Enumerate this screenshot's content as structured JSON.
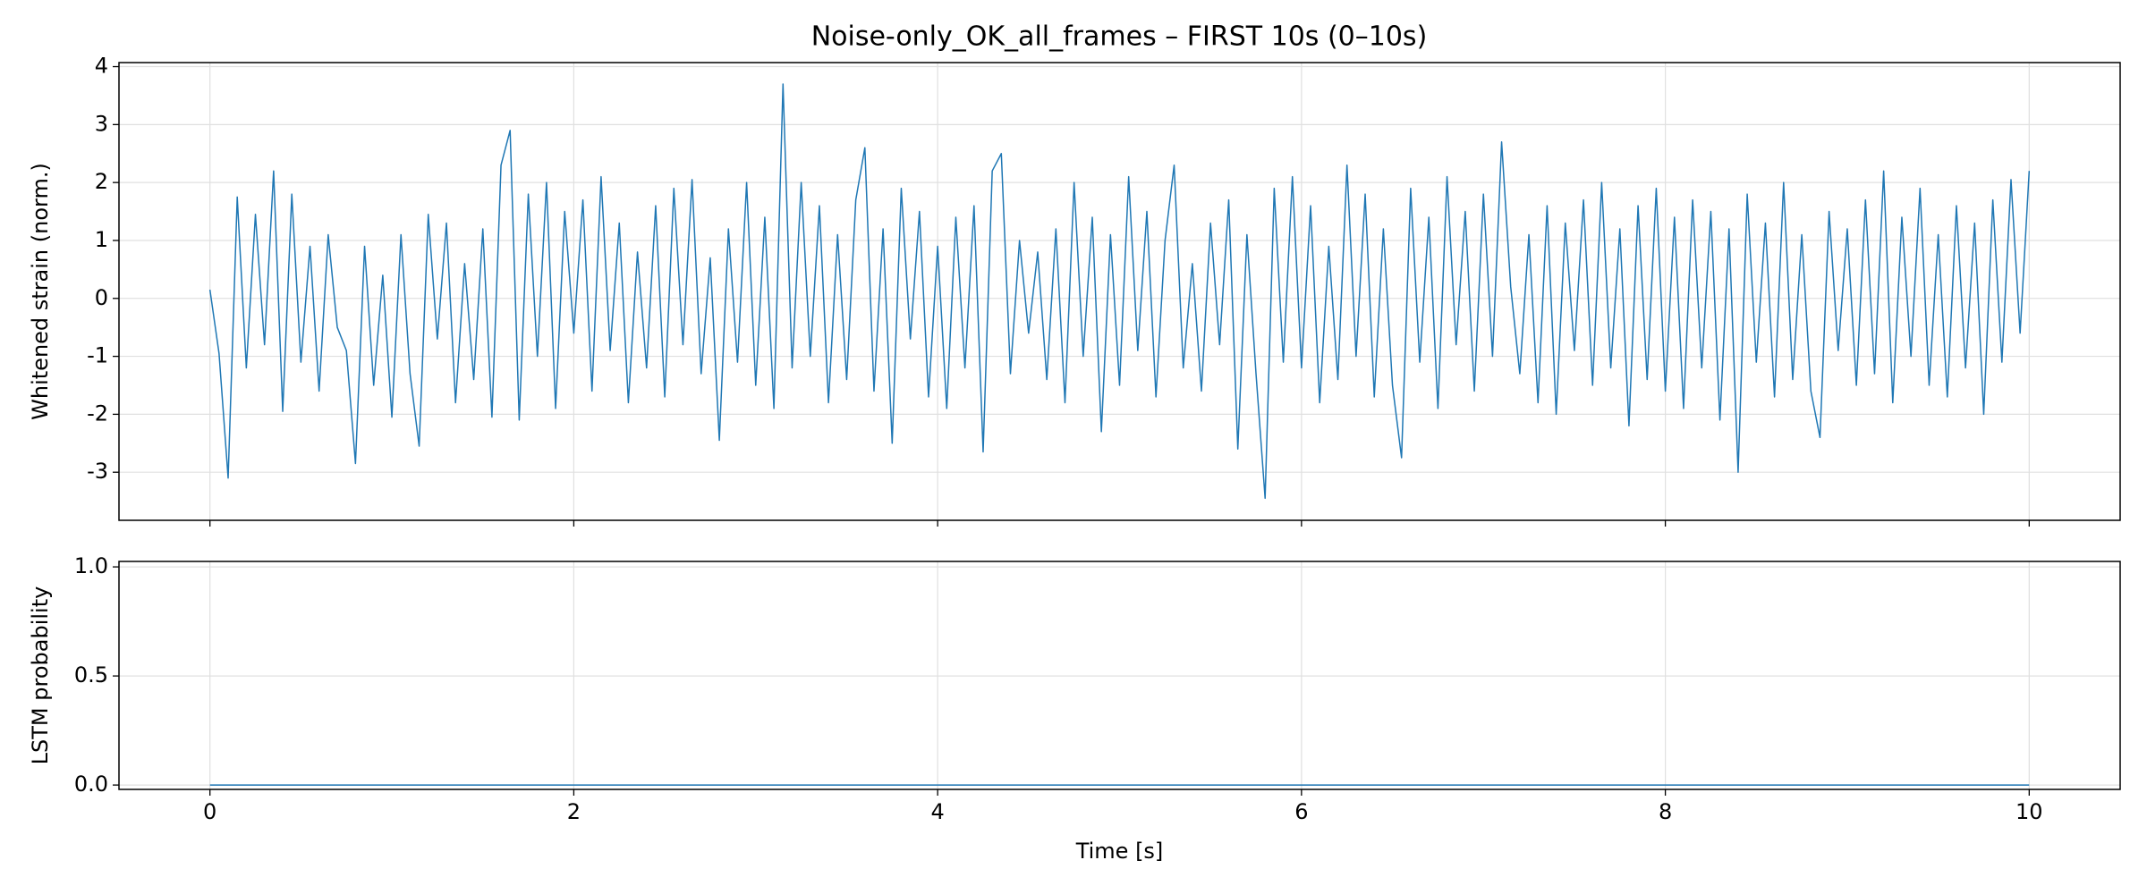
{
  "chart_data": [
    {
      "type": "line",
      "title": "Noise-only_OK_all_frames – FIRST 10s (0–10s)",
      "ylabel": "Whitened strain (norm.)",
      "x": [
        0,
        0.05,
        0.1,
        0.15,
        0.2,
        0.25,
        0.3,
        0.35,
        0.4,
        0.45,
        0.5,
        0.55,
        0.6,
        0.65,
        0.7,
        0.75,
        0.8,
        0.85,
        0.9,
        0.95,
        1,
        1.05,
        1.1,
        1.15,
        1.2,
        1.25,
        1.3,
        1.35,
        1.4,
        1.45,
        1.5,
        1.55,
        1.6,
        1.65,
        1.7,
        1.75,
        1.8,
        1.85,
        1.9,
        1.95,
        2,
        2.05,
        2.1,
        2.15,
        2.2,
        2.25,
        2.3,
        2.35,
        2.4,
        2.45,
        2.5,
        2.55,
        2.6,
        2.65,
        2.7,
        2.75,
        2.8,
        2.85,
        2.9,
        2.95,
        3,
        3.05,
        3.1,
        3.15,
        3.2,
        3.25,
        3.3,
        3.35,
        3.4,
        3.45,
        3.5,
        3.55,
        3.6,
        3.65,
        3.7,
        3.75,
        3.8,
        3.85,
        3.9,
        3.95,
        4,
        4.05,
        4.1,
        4.15,
        4.2,
        4.25,
        4.3,
        4.35,
        4.4,
        4.45,
        4.5,
        4.55,
        4.6,
        4.65,
        4.7,
        4.75,
        4.8,
        4.85,
        4.9,
        4.95,
        5,
        5.05,
        5.1,
        5.15,
        5.2,
        5.25,
        5.3,
        5.35,
        5.4,
        5.45,
        5.5,
        5.55,
        5.6,
        5.65,
        5.7,
        5.75,
        5.8,
        5.85,
        5.9,
        5.95,
        6,
        6.05,
        6.1,
        6.15,
        6.2,
        6.25,
        6.3,
        6.35,
        6.4,
        6.45,
        6.5,
        6.55,
        6.6,
        6.65,
        6.7,
        6.75,
        6.8,
        6.85,
        6.9,
        6.95,
        7,
        7.05,
        7.1,
        7.15,
        7.2,
        7.25,
        7.3,
        7.35,
        7.4,
        7.45,
        7.5,
        7.55,
        7.6,
        7.65,
        7.7,
        7.75,
        7.8,
        7.85,
        7.9,
        7.95,
        8,
        8.05,
        8.1,
        8.15,
        8.2,
        8.25,
        8.3,
        8.35,
        8.4,
        8.45,
        8.5,
        8.55,
        8.6,
        8.65,
        8.7,
        8.75,
        8.8,
        8.85,
        8.9,
        8.95,
        9,
        9.05,
        9.1,
        9.15,
        9.2,
        9.25,
        9.3,
        9.35,
        9.4,
        9.45,
        9.5,
        9.55,
        9.6,
        9.65,
        9.7,
        9.75,
        9.8,
        9.85,
        9.9,
        9.95,
        10
      ],
      "values": [
        0.15,
        -0.95,
        -3.1,
        1.75,
        -1.2,
        1.45,
        -0.8,
        2.2,
        -1.95,
        1.8,
        -1.1,
        0.9,
        -1.6,
        1.1,
        -0.5,
        -0.9,
        -2.85,
        0.9,
        -1.5,
        0.4,
        -2.05,
        1.1,
        -1.3,
        -2.55,
        1.45,
        -0.7,
        1.3,
        -1.8,
        0.6,
        -1.4,
        1.2,
        -2.05,
        2.3,
        2.9,
        -2.1,
        1.8,
        -1.0,
        2.0,
        -1.9,
        1.5,
        -0.6,
        1.7,
        -1.6,
        2.1,
        -0.9,
        1.3,
        -1.8,
        0.8,
        -1.2,
        1.6,
        -1.7,
        1.9,
        -0.8,
        2.05,
        -1.3,
        0.7,
        -2.45,
        1.2,
        -1.1,
        2.0,
        -1.5,
        1.4,
        -1.9,
        3.7,
        -1.2,
        2.0,
        -1.0,
        1.6,
        -1.8,
        1.1,
        -1.4,
        1.7,
        2.6,
        -1.6,
        1.2,
        -2.5,
        1.9,
        -0.7,
        1.5,
        -1.7,
        0.9,
        -1.9,
        1.4,
        -1.2,
        1.6,
        -2.65,
        2.2,
        2.5,
        -1.3,
        1.0,
        -0.6,
        0.8,
        -1.4,
        1.2,
        -1.8,
        2.0,
        -1.0,
        1.4,
        -2.3,
        1.1,
        -1.5,
        2.1,
        -0.9,
        1.5,
        -1.7,
        1.0,
        2.3,
        -1.2,
        0.6,
        -1.6,
        1.3,
        -0.8,
        1.7,
        -2.6,
        1.1,
        -1.3,
        -3.45,
        1.9,
        -1.1,
        2.1,
        -1.2,
        1.6,
        -1.8,
        0.9,
        -1.4,
        2.3,
        -1.0,
        1.8,
        -1.7,
        1.2,
        -1.5,
        -2.75,
        1.9,
        -1.1,
        1.4,
        -1.9,
        2.1,
        -0.8,
        1.5,
        -1.6,
        1.8,
        -1.0,
        2.7,
        0.2,
        -1.3,
        1.1,
        -1.8,
        1.6,
        -2.0,
        1.3,
        -0.9,
        1.7,
        -1.5,
        2.0,
        -1.2,
        1.2,
        -2.2,
        1.6,
        -1.4,
        1.9,
        -1.6,
        1.4,
        -1.9,
        1.7,
        -1.2,
        1.5,
        -2.1,
        1.2,
        -3.0,
        1.8,
        -1.1,
        1.3,
        -1.7,
        2.0,
        -1.4,
        1.1,
        -1.6,
        -2.4,
        1.5,
        -0.9,
        1.2,
        -1.5,
        1.7,
        -1.3,
        2.2,
        -1.8,
        1.4,
        -1.0,
        1.9,
        -1.5,
        1.1,
        -1.7,
        1.6,
        -1.2,
        1.3,
        -2.0,
        1.7,
        -1.1,
        2.05,
        -0.6,
        2.2
      ],
      "color": "#1f77b4",
      "xlim": [
        -0.5,
        10.5
      ],
      "ylim": [
        -3.83,
        4.07
      ],
      "xticks": [
        0,
        2,
        4,
        6,
        8,
        10
      ],
      "yticks": [
        -3,
        -2,
        -1,
        0,
        1,
        2,
        3,
        4
      ],
      "grid": true
    },
    {
      "type": "line",
      "xlabel": "Time [s]",
      "ylabel": "LSTM probability",
      "x": [
        0,
        10
      ],
      "values": [
        0,
        0
      ],
      "color": "#1f77b4",
      "xlim": [
        -0.5,
        10.5
      ],
      "ylim": [
        -0.02,
        1.025
      ],
      "xticks": [
        0,
        2,
        4,
        6,
        8,
        10
      ],
      "yticks": [
        {
          "value": 0,
          "label": "0.0"
        },
        {
          "value": 0.5,
          "label": "0.5"
        },
        {
          "value": 1,
          "label": "1.0"
        }
      ],
      "grid": true
    }
  ]
}
